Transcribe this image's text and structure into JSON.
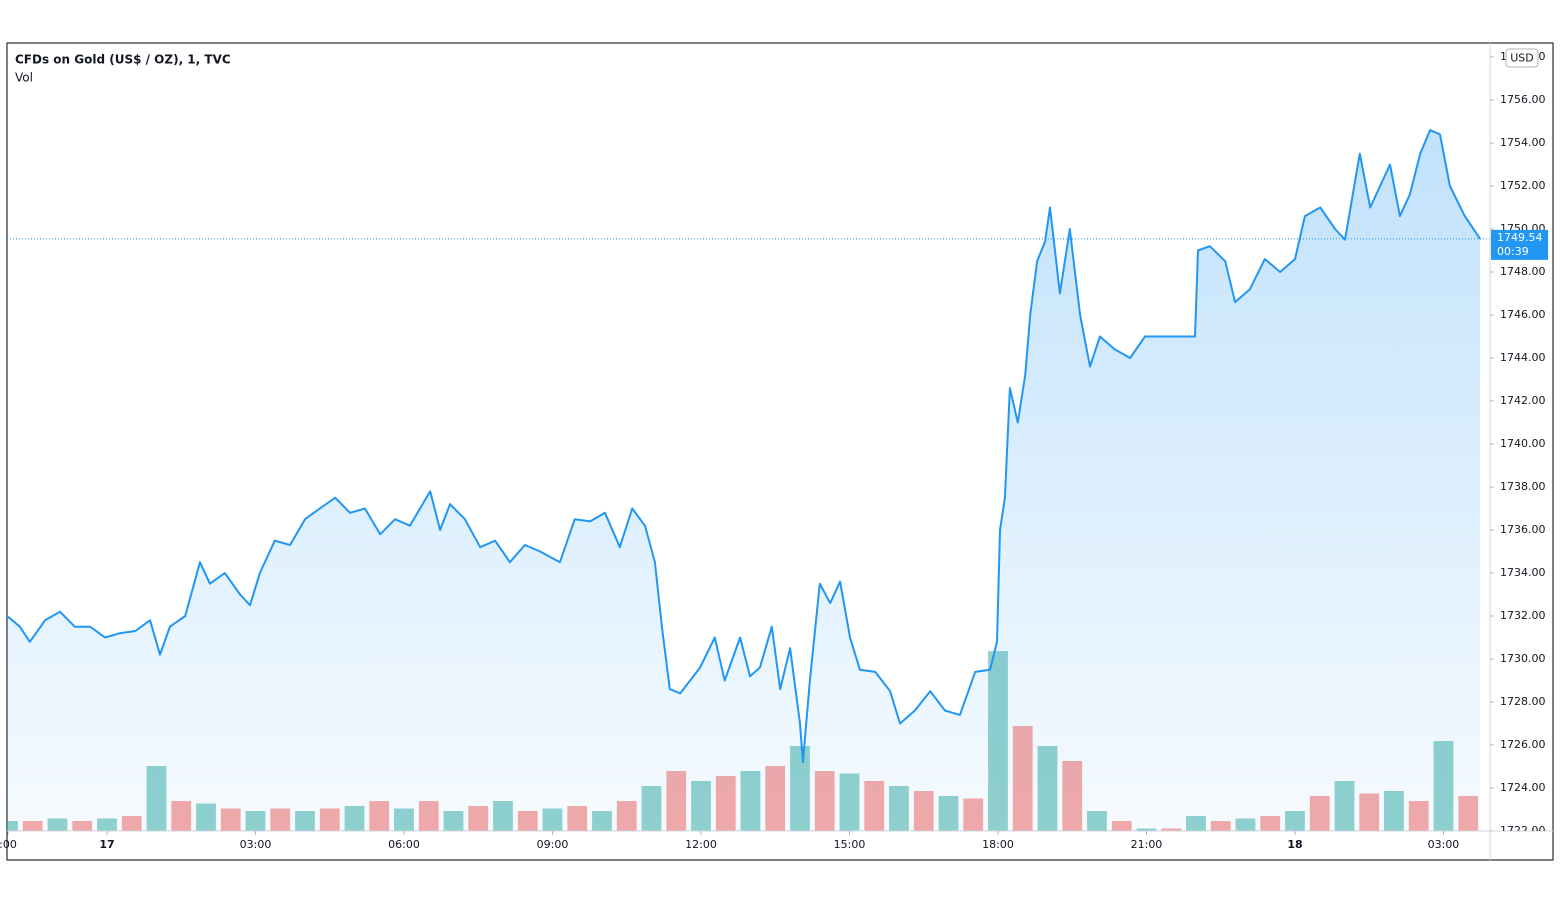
{
  "chart_data": {
    "type": "area",
    "title": "CFDs on Gold (US$ / OZ), 1, TVC",
    "volume_label": "Vol",
    "currency": "USD",
    "countdown": "00:39",
    "last_value_label": "1749.54",
    "series": [
      {
        "name": "CFDs on Gold",
        "color": "#2196f3",
        "x": [
          -2.02,
          -1.76,
          -1.56,
          -1.25,
          -0.95,
          -0.65,
          -0.34,
          -0.04,
          0.26,
          0.57,
          0.87,
          1.07,
          1.27,
          1.58,
          1.88,
          2.08,
          2.38,
          2.69,
          2.89,
          3.09,
          3.39,
          3.7,
          4.0,
          4.3,
          4.61,
          4.91,
          5.21,
          5.52,
          5.82,
          6.12,
          6.53,
          6.73,
          6.93,
          7.23,
          7.54,
          7.84,
          8.14,
          8.44,
          8.75,
          9.15,
          9.45,
          9.76,
          10.06,
          10.36,
          10.61,
          10.87,
          11.07,
          11.21,
          11.37,
          11.58,
          11.78,
          11.98,
          12.28,
          12.48,
          12.79,
          12.99,
          13.19,
          13.43,
          13.6,
          13.8,
          14.0,
          14.06,
          14.2,
          14.4,
          14.61,
          14.81,
          15.01,
          15.21,
          15.52,
          15.82,
          16.02,
          16.32,
          16.63,
          16.93,
          17.23,
          17.54,
          17.84,
          17.98,
          18.04,
          18.14,
          18.24,
          18.4,
          18.55,
          18.65,
          18.79,
          18.95,
          19.05,
          19.25,
          19.45,
          19.66,
          19.86,
          20.06,
          20.36,
          20.67,
          20.97,
          21.47,
          21.98,
          22.04,
          22.28,
          22.59,
          22.79,
          23.09,
          23.39,
          23.7,
          24.0,
          24.2,
          24.51,
          24.81,
          25.01,
          25.31,
          25.52,
          25.92,
          26.12,
          26.32,
          26.53,
          26.73,
          26.93,
          27.13,
          27.43,
          27.74
        ],
        "values": [
          1732,
          1731.5,
          1730.8,
          1731.8,
          1732.2,
          1731.5,
          1731.5,
          1731,
          1731.2,
          1731.3,
          1731.8,
          1730.2,
          1731.5,
          1732,
          1734.5,
          1733.5,
          1734,
          1733,
          1732.5,
          1734,
          1735.5,
          1735.3,
          1736.5,
          1737,
          1737.5,
          1736.8,
          1737,
          1735.8,
          1736.5,
          1736.2,
          1737.8,
          1736,
          1737.2,
          1736.5,
          1735.2,
          1735.5,
          1734.5,
          1735.3,
          1735,
          1734.5,
          1736.5,
          1736.4,
          1736.8,
          1735.2,
          1737,
          1736.2,
          1734.5,
          1731.5,
          1728.6,
          1728.4,
          1729,
          1729.6,
          1731,
          1729,
          1731,
          1729.2,
          1729.6,
          1731.5,
          1728.6,
          1730.5,
          1727,
          1725.2,
          1729,
          1733.5,
          1732.6,
          1733.6,
          1731,
          1729.5,
          1729.4,
          1728.5,
          1727,
          1727.6,
          1728.5,
          1727.6,
          1727.4,
          1729.4,
          1729.5,
          1730.8,
          1736,
          1737.5,
          1742.6,
          1741,
          1743.2,
          1746,
          1748.5,
          1749.4,
          1751,
          1747,
          1750,
          1746,
          1743.6,
          1745,
          1744.4,
          1744,
          1745,
          1745,
          1745,
          1749,
          1749.2,
          1748.5,
          1746.6,
          1747.2,
          1748.6,
          1748,
          1748.6,
          1750.6,
          1751,
          1750,
          1749.5,
          1753.5,
          1751,
          1753,
          1750.6,
          1751.6,
          1753.5,
          1754.6,
          1754.4,
          1752,
          1750.6,
          1749.54
        ]
      },
      {
        "name": "Vol",
        "axis": "y2",
        "colors": [
          "#26a69a",
          "#ef5350"
        ],
        "x": [
          -2,
          -1.5,
          -1,
          -0.5,
          0,
          0.5,
          1,
          1.5,
          2,
          2.5,
          3,
          3.5,
          4,
          4.5,
          5,
          5.5,
          6,
          6.5,
          7,
          7.5,
          8,
          8.5,
          9,
          9.5,
          10,
          10.5,
          11,
          11.5,
          12,
          12.5,
          13,
          13.5,
          14,
          14.5,
          15,
          15.5,
          16,
          16.5,
          17,
          17.5,
          18,
          18.5,
          19,
          19.5,
          20,
          20.5,
          21,
          21.5,
          22,
          22.5,
          23,
          23.5,
          24,
          24.5,
          25,
          25.5,
          26,
          26.5,
          27,
          27.5
        ],
        "values": [
          4,
          4,
          5,
          4,
          5,
          6,
          26,
          12,
          11,
          9,
          8,
          9,
          8,
          9,
          10,
          12,
          9,
          12,
          8,
          10,
          12,
          8,
          9,
          10,
          8,
          12,
          18,
          24,
          20,
          22,
          24,
          26,
          34,
          24,
          23,
          20,
          18,
          16,
          14,
          13,
          72,
          42,
          34,
          28,
          8,
          4,
          1,
          1,
          6,
          4,
          5,
          6,
          8,
          14,
          20,
          15,
          16,
          12,
          36,
          14
        ]
      }
    ],
    "xlim": [
      -2.02,
      27.94
    ],
    "xticks": [
      {
        "value": -2,
        "label": ":00"
      },
      {
        "value": 0,
        "label": "17"
      },
      {
        "value": 3,
        "label": "03:00"
      },
      {
        "value": 6,
        "label": "06:00"
      },
      {
        "value": 9,
        "label": "09:00"
      },
      {
        "value": 12,
        "label": "12:00"
      },
      {
        "value": 15,
        "label": "15:00"
      },
      {
        "value": 18,
        "label": "18:00"
      },
      {
        "value": 21,
        "label": "21:00"
      },
      {
        "value": 24,
        "label": "18"
      },
      {
        "value": 27,
        "label": "03:00"
      }
    ],
    "ylim": [
      1722,
      1758.65
    ],
    "yticks": [
      {
        "value": 1722,
        "label": "1722.00"
      },
      {
        "value": 1724,
        "label": "1724.00"
      },
      {
        "value": 1726,
        "label": "1726.00"
      },
      {
        "value": 1728,
        "label": "1728.00"
      },
      {
        "value": 1730,
        "label": "1730.00"
      },
      {
        "value": 1732,
        "label": "1732.00"
      },
      {
        "value": 1734,
        "label": "1734.00"
      },
      {
        "value": 1736,
        "label": "1736.00"
      },
      {
        "value": 1738,
        "label": "1738.00"
      },
      {
        "value": 1740,
        "label": "1740.00"
      },
      {
        "value": 1742,
        "label": "1742.00"
      },
      {
        "value": 1744,
        "label": "1744.00"
      },
      {
        "value": 1746,
        "label": "1746.00"
      },
      {
        "value": 1748,
        "label": "1748.00"
      },
      {
        "value": 1750,
        "label": "1750.00"
      },
      {
        "value": 1752,
        "label": "1752.00"
      },
      {
        "value": 1754,
        "label": "1754.00"
      },
      {
        "value": 1756,
        "label": "1756.00"
      },
      {
        "value": 1758,
        "label": "1758.00"
      }
    ],
    "y2lim": [
      0,
      100
    ],
    "grid": true
  }
}
